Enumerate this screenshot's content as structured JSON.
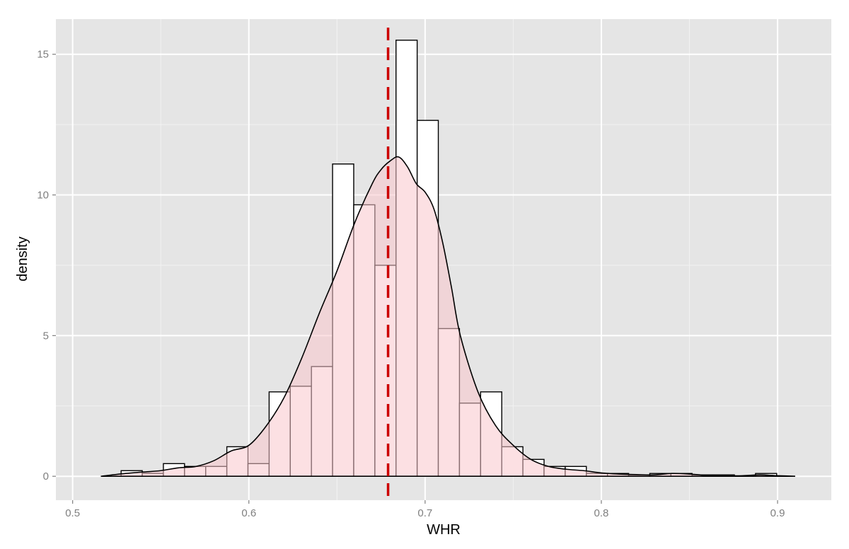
{
  "chart_data": {
    "type": "histogram",
    "xlabel": "WHR",
    "ylabel": "density",
    "xlim": [
      0.4905,
      0.9305
    ],
    "ylim": [
      -0.85,
      16.25
    ],
    "x_ticks": [
      0.5,
      0.6,
      0.7,
      0.8,
      0.9
    ],
    "x_tick_labels": [
      "0.5",
      "0.6",
      "0.7",
      "0.8",
      "0.9"
    ],
    "y_ticks": [
      0,
      5,
      10,
      15
    ],
    "y_tick_labels": [
      "0",
      "5",
      "10",
      "15"
    ],
    "grid": true,
    "colors": {
      "panel": "#e5e5e5",
      "grid_major": "#ffffff",
      "grid_minor": "#f2f2f2",
      "bar_fill": "#ffffff",
      "bar_stroke": "#000000",
      "density_fill": "#f9c6cc",
      "density_fill_opacity": 0.55,
      "density_line": "#000000",
      "mean_line": "#cc0000"
    },
    "histogram": {
      "bin_edges": [
        0.5275,
        0.5395,
        0.5515,
        0.5635,
        0.5755,
        0.5875,
        0.5995,
        0.6115,
        0.6235,
        0.6355,
        0.6475,
        0.6595,
        0.6715,
        0.6835,
        0.6955,
        0.7075,
        0.7195,
        0.7315,
        0.7435,
        0.7555,
        0.7675,
        0.7795,
        0.7915,
        0.8035,
        0.8155,
        0.8275,
        0.8395,
        0.8515,
        0.8635,
        0.8755,
        0.8875,
        0.8995
      ],
      "density": [
        0.2,
        0.1,
        0.45,
        0.35,
        0.35,
        1.05,
        0.45,
        3.0,
        3.2,
        3.9,
        11.1,
        9.65,
        7.5,
        15.5,
        12.65,
        5.25,
        2.6,
        3.0,
        1.05,
        0.6,
        0.35,
        0.35,
        0.1,
        0.1,
        0.05,
        0.1,
        0.1,
        0.05,
        0.05,
        0.0,
        0.1
      ]
    },
    "density_curve": {
      "x": [
        0.516,
        0.53,
        0.54,
        0.55,
        0.56,
        0.57,
        0.58,
        0.59,
        0.6,
        0.61,
        0.62,
        0.63,
        0.64,
        0.65,
        0.66,
        0.67,
        0.675,
        0.68,
        0.685,
        0.69,
        0.695,
        0.7,
        0.705,
        0.71,
        0.715,
        0.72,
        0.73,
        0.74,
        0.75,
        0.76,
        0.77,
        0.78,
        0.79,
        0.8,
        0.81,
        0.82,
        0.83,
        0.84,
        0.85,
        0.86,
        0.87,
        0.88,
        0.89,
        0.9,
        0.91
      ],
      "y": [
        0.0,
        0.1,
        0.15,
        0.2,
        0.3,
        0.35,
        0.55,
        0.9,
        1.1,
        1.8,
        2.8,
        4.2,
        5.8,
        7.3,
        9.0,
        10.4,
        10.9,
        11.2,
        11.35,
        11.0,
        10.4,
        10.1,
        9.5,
        8.3,
        6.7,
        5.0,
        3.0,
        1.8,
        1.1,
        0.6,
        0.35,
        0.25,
        0.2,
        0.12,
        0.08,
        0.06,
        0.05,
        0.1,
        0.08,
        0.03,
        0.02,
        0.02,
        0.05,
        0.02,
        0.0
      ]
    },
    "mean_line": {
      "x": 0.679,
      "style": "dashed"
    }
  }
}
